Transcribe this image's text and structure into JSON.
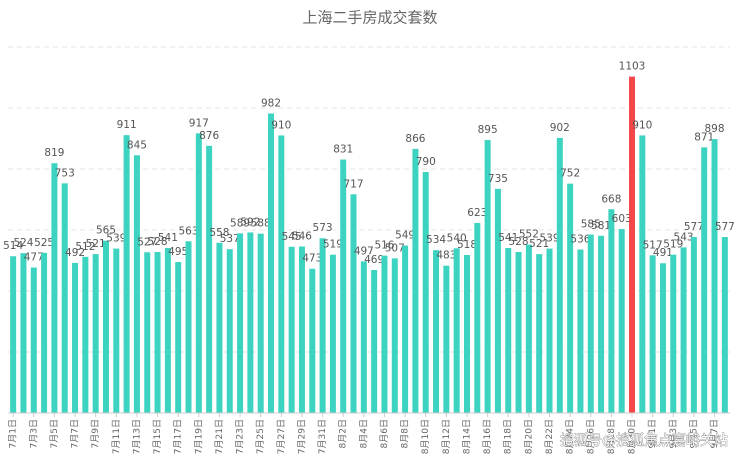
{
  "chart_data": {
    "type": "bar",
    "title": "上海二手房成交套数",
    "categories": [
      "7月1日",
      null,
      "7月3日",
      null,
      "7月5日",
      null,
      "7月7日",
      null,
      "7月9日",
      null,
      "7月11日",
      null,
      "7月13日",
      null,
      "7月15日",
      null,
      "7月17日",
      null,
      "7月19日",
      null,
      "7月21日",
      null,
      "7月23日",
      null,
      "7月25日",
      null,
      "7月27日",
      null,
      "7月29日",
      null,
      "7月31日",
      null,
      "8月2日",
      null,
      "8月4日",
      null,
      "8月6日",
      null,
      "8月8日",
      null,
      "8月10日",
      null,
      "8月12日",
      null,
      "8月14日",
      null,
      "8月16日",
      null,
      "8月18日",
      null,
      "8月20日",
      null,
      "8月22日",
      null,
      "8月24日",
      null,
      "8月26日",
      null,
      "8月28日",
      null,
      "8月30日",
      null,
      "9月1日",
      null,
      "9月3日",
      null,
      "9月5日",
      null,
      "9月7日",
      null
    ],
    "values": [
      514,
      524,
      477,
      525,
      819,
      753,
      492,
      512,
      521,
      565,
      539,
      911,
      845,
      527,
      528,
      541,
      495,
      563,
      917,
      876,
      558,
      537,
      589,
      592,
      588,
      982,
      910,
      545,
      546,
      473,
      573,
      519,
      831,
      717,
      497,
      469,
      516,
      507,
      549,
      866,
      790,
      534,
      483,
      540,
      518,
      623,
      895,
      735,
      541,
      528,
      552,
      521,
      539,
      902,
      752,
      536,
      585,
      581,
      668,
      603,
      1103,
      910,
      517,
      491,
      519,
      543,
      577,
      871,
      898,
      577
    ],
    "color": "#3dd3c1",
    "highlight_color": "#f5474a",
    "colors": [
      "n",
      "n",
      "n",
      "n",
      "n",
      "n",
      "n",
      "n",
      "n",
      "n",
      "n",
      "n",
      "n",
      "n",
      "n",
      "n",
      "n",
      "n",
      "n",
      "n",
      "n",
      "n",
      "n",
      "n",
      "n",
      "n",
      "n",
      "n",
      "n",
      "n",
      "n",
      "n",
      "n",
      "n",
      "n",
      "n",
      "n",
      "n",
      "n",
      "n",
      "n",
      "n",
      "n",
      "n",
      "n",
      "n",
      "n",
      "n",
      "n",
      "n",
      "n",
      "n",
      "n",
      "n",
      "n",
      "n",
      "n",
      "n",
      "n",
      "n",
      "h",
      "n",
      "n",
      "n",
      "n",
      "n",
      "n",
      "n",
      "n",
      "n"
    ],
    "ylim": [
      0,
      1200
    ],
    "yticks": [
      0,
      200,
      400,
      600,
      800,
      1000,
      1200
    ],
    "grid": true,
    "watermark": "搜狐号@搜狐焦点嘉峪关站"
  }
}
